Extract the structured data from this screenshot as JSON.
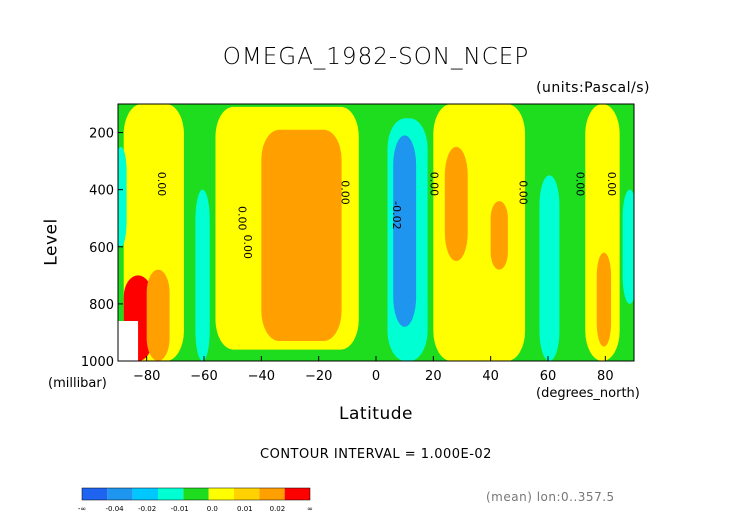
{
  "chart_data": {
    "type": "heatmap",
    "title": "OMEGA_1982-SON_NCEP",
    "units_note": "(units:Pascal/s)",
    "xlabel": "Latitude",
    "x_units": "(degrees_north)",
    "ylabel": "Level",
    "y_units": "(millibar)",
    "xlim": [
      -90,
      90
    ],
    "ylim": [
      1000,
      100
    ],
    "x_ticks": [
      -80,
      -60,
      -40,
      -20,
      0,
      20,
      40,
      60,
      80
    ],
    "y_ticks": [
      200,
      400,
      600,
      800,
      1000
    ],
    "contour_interval_text": "CONTOUR INTERVAL = 1.000E-02",
    "contour_labels": [
      "0.00",
      "0.00",
      "0.00",
      "0.00",
      "-0.02",
      "0.00",
      "0.00",
      "0.00",
      "0.00"
    ],
    "footnote": "(mean) lon:0..357.5",
    "colorbar": {
      "labels": [
        "-∞",
        "-0.04",
        "-0.02",
        "-0.01",
        "0.0",
        "0.01",
        "0.02",
        "∞"
      ],
      "colors": [
        "#1e64f0",
        "#1e96f0",
        "#00c8ff",
        "#00ffd2",
        "#1edc1e",
        "#ffff00",
        "#ffd200",
        "#ffa000",
        "#ff0000"
      ]
    },
    "regions": [
      {
        "value_class": "positive",
        "color": "#ffff00",
        "lat": [
          -88,
          -67
        ],
        "lev": [
          100,
          1000
        ]
      },
      {
        "value_class": "positive",
        "color": "#ffff00",
        "lat": [
          -56,
          -6
        ],
        "lev": [
          110,
          960
        ]
      },
      {
        "value_class": "positive",
        "color": "#ffff00",
        "lat": [
          20,
          52
        ],
        "lev": [
          100,
          1000
        ]
      },
      {
        "value_class": "positive",
        "color": "#ffff00",
        "lat": [
          73,
          85
        ],
        "lev": [
          100,
          1000
        ]
      },
      {
        "value_class": "strong-positive",
        "color": "#ffa000",
        "lat": [
          -40,
          -12
        ],
        "lev": [
          190,
          930
        ]
      },
      {
        "value_class": "strong-positive",
        "color": "#ffa000",
        "lat": [
          24,
          32
        ],
        "lev": [
          250,
          650
        ]
      },
      {
        "value_class": "strong-positive",
        "color": "#ffa000",
        "lat": [
          40,
          46
        ],
        "lev": [
          440,
          680
        ]
      },
      {
        "value_class": "strong-positive",
        "color": "#ffa000",
        "lat": [
          77,
          82
        ],
        "lev": [
          620,
          950
        ]
      },
      {
        "value_class": "negative",
        "color": "#00ffd2",
        "lat": [
          4,
          18
        ],
        "lev": [
          150,
          1000
        ]
      },
      {
        "value_class": "negative",
        "color": "#00ffd2",
        "lat": [
          -63,
          -58
        ],
        "lev": [
          400,
          1000
        ]
      },
      {
        "value_class": "negative",
        "color": "#00ffd2",
        "lat": [
          57,
          64
        ],
        "lev": [
          350,
          1000
        ]
      },
      {
        "value_class": "negative",
        "color": "#00ffd2",
        "lat": [
          -91,
          -87
        ],
        "lev": [
          250,
          600
        ]
      },
      {
        "value_class": "negative",
        "color": "#00ffd2",
        "lat": [
          86,
          91
        ],
        "lev": [
          400,
          800
        ]
      },
      {
        "value_class": "strong-negative",
        "color": "#1e96f0",
        "lat": [
          6,
          14
        ],
        "lev": [
          210,
          880
        ]
      },
      {
        "value_class": "strong-positive",
        "color": "#ff0000",
        "lat": [
          -88,
          -78
        ],
        "lev": [
          700,
          1000
        ]
      },
      {
        "value_class": "strong-positive",
        "color": "#ffa000",
        "lat": [
          -80,
          -72
        ],
        "lev": [
          680,
          1000
        ]
      }
    ]
  }
}
